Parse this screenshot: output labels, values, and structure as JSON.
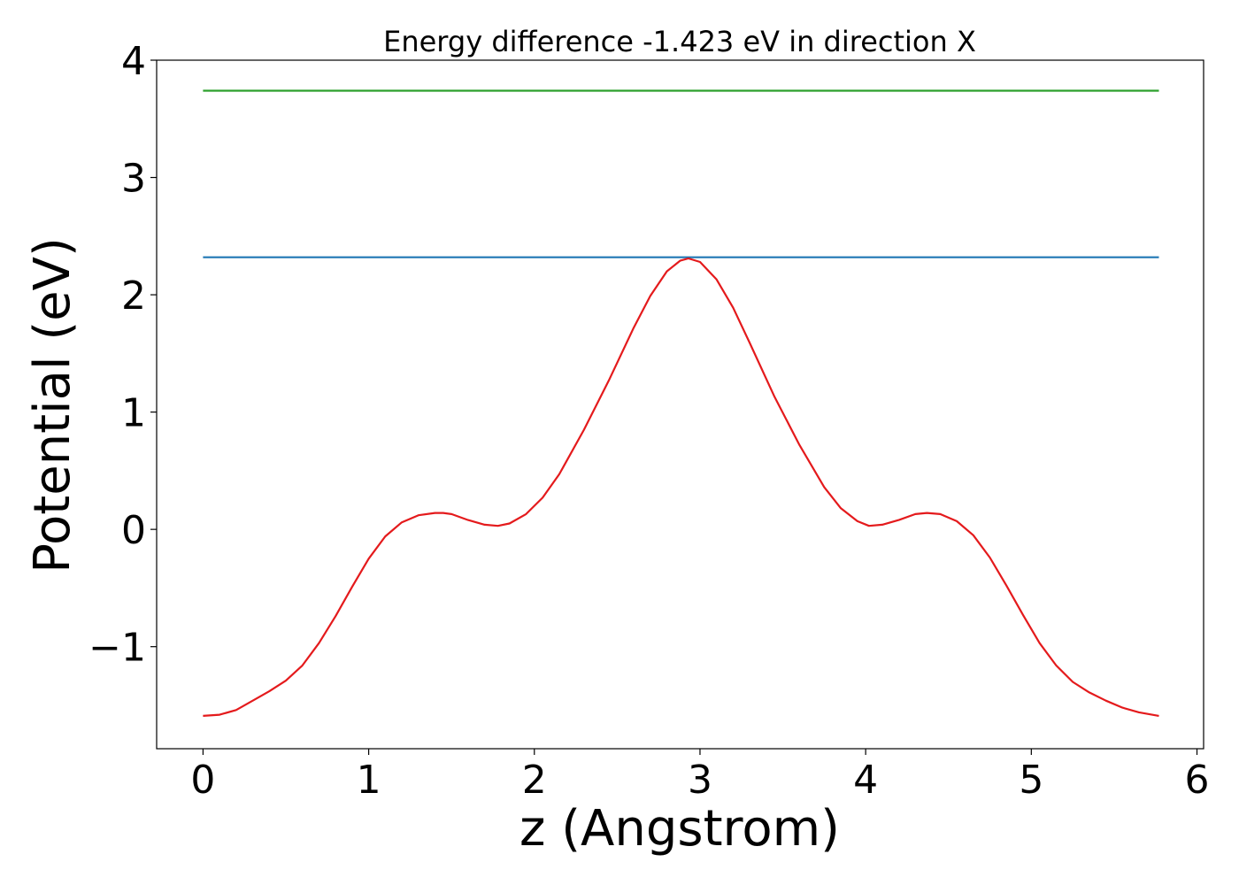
{
  "chart_data": {
    "type": "line",
    "title": "Energy difference -1.423 eV in direction X",
    "xlabel": "z (Angstrom)",
    "ylabel": "Potential (eV)",
    "xlim": [
      -0.28,
      6.04
    ],
    "ylim": [
      -1.87,
      4.0
    ],
    "x_ticks": [
      0,
      1,
      2,
      3,
      4,
      5,
      6
    ],
    "x_tick_labels": [
      "0",
      "1",
      "2",
      "3",
      "4",
      "5",
      "6"
    ],
    "y_ticks": [
      -1,
      0,
      1,
      2,
      3,
      4
    ],
    "y_tick_labels": [
      "−1",
      "0",
      "1",
      "2",
      "3",
      "4"
    ],
    "grid": false,
    "series": [
      {
        "color": "#2ca02c",
        "x": [
          0.0,
          5.77
        ],
        "y": [
          3.74,
          3.74
        ]
      },
      {
        "color": "#1f77b4",
        "x": [
          0.0,
          5.77
        ],
        "y": [
          2.32,
          2.32
        ]
      },
      {
        "color": "#e41a1c",
        "x": [
          0.0,
          0.1,
          0.2,
          0.3,
          0.4,
          0.5,
          0.6,
          0.7,
          0.8,
          0.9,
          1.0,
          1.1,
          1.2,
          1.3,
          1.4,
          1.45,
          1.5,
          1.6,
          1.7,
          1.78,
          1.85,
          1.95,
          2.05,
          2.15,
          2.3,
          2.45,
          2.6,
          2.7,
          2.8,
          2.88,
          2.93,
          3.0,
          3.1,
          3.2,
          3.3,
          3.45,
          3.6,
          3.75,
          3.85,
          3.95,
          4.02,
          4.1,
          4.2,
          4.3,
          4.37,
          4.45,
          4.55,
          4.65,
          4.75,
          4.85,
          4.95,
          5.05,
          5.15,
          5.25,
          5.35,
          5.45,
          5.55,
          5.65,
          5.77
        ],
        "y": [
          -1.59,
          -1.58,
          -1.54,
          -1.46,
          -1.38,
          -1.29,
          -1.16,
          -0.97,
          -0.74,
          -0.49,
          -0.25,
          -0.06,
          0.06,
          0.12,
          0.14,
          0.14,
          0.13,
          0.08,
          0.04,
          0.03,
          0.05,
          0.13,
          0.27,
          0.47,
          0.85,
          1.27,
          1.72,
          1.99,
          2.2,
          2.29,
          2.31,
          2.28,
          2.13,
          1.89,
          1.59,
          1.13,
          0.72,
          0.36,
          0.18,
          0.07,
          0.03,
          0.04,
          0.08,
          0.13,
          0.14,
          0.13,
          0.07,
          -0.05,
          -0.24,
          -0.48,
          -0.73,
          -0.97,
          -1.16,
          -1.3,
          -1.39,
          -1.46,
          -1.52,
          -1.56,
          -1.59
        ]
      }
    ]
  }
}
